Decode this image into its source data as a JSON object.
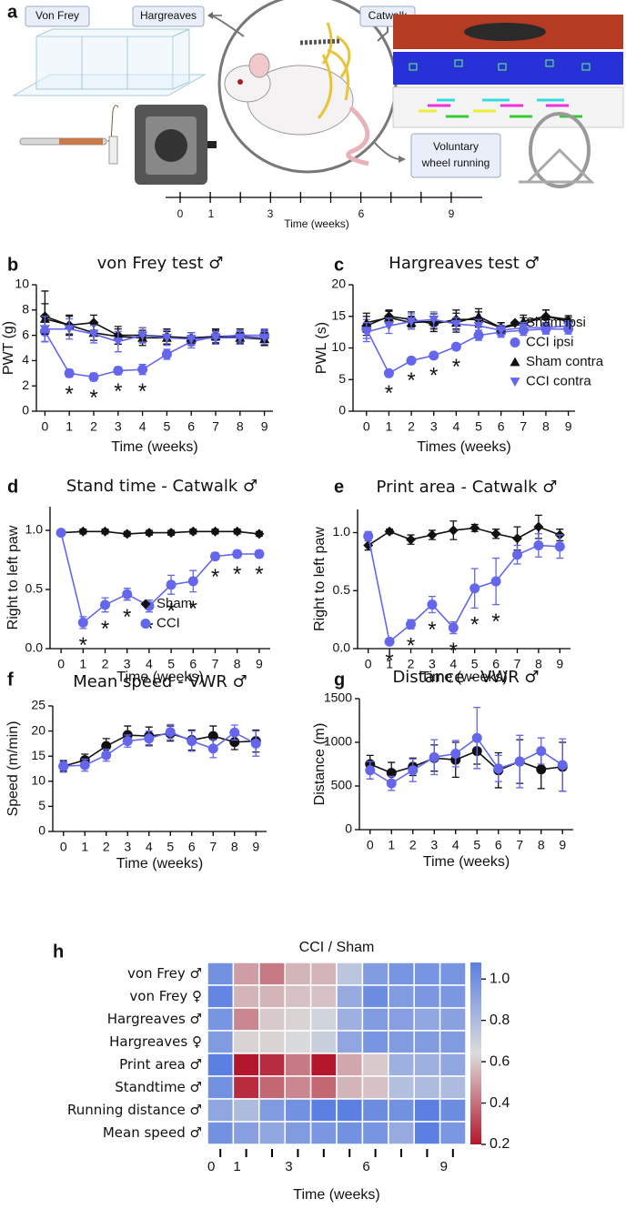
{
  "schematic": {
    "panel_label": "a",
    "von_frey": "Von Frey",
    "hargreaves": "Hargreaves",
    "catwalk": "Catwalk",
    "wheel_box": [
      "Voluntary",
      "wheel running"
    ],
    "timeline_labels": [
      "0",
      "1",
      "3",
      "6",
      "9"
    ],
    "timeline_title": "Time (weeks)"
  },
  "chart_data": [
    {
      "type": "line",
      "panel_label": "b",
      "title": "von Frey test ♂",
      "xlabel": "Time (weeks)",
      "ylabel": "PWT (g)",
      "x": [
        0,
        1,
        2,
        3,
        4,
        5,
        6,
        7,
        8,
        9
      ],
      "xlim": [
        -0.35,
        9.35
      ],
      "xticks": [
        0,
        1,
        2,
        3,
        4,
        5,
        6,
        7,
        8,
        9
      ],
      "ylim": [
        0,
        10
      ],
      "yticks": [
        0,
        2,
        4,
        6,
        8,
        10
      ],
      "legend": false,
      "series": [
        {
          "color": "#111111",
          "marker": "diamond",
          "values": [
            7.5,
            6.8,
            7.0,
            6.0,
            6.0,
            5.9,
            5.8,
            5.9,
            5.9,
            5.8
          ],
          "errors": [
            2.0,
            0.8,
            0.6,
            0.7,
            0.6,
            0.6,
            0.4,
            0.6,
            0.6,
            0.6
          ]
        },
        {
          "color": "#6466ec",
          "marker": "circle",
          "values": [
            6.3,
            3.0,
            2.7,
            3.2,
            3.3,
            4.5,
            5.5,
            5.9,
            6.0,
            6.0
          ],
          "errors": [
            0.8,
            0.3,
            0.3,
            0.3,
            0.4,
            0.4,
            0.5,
            0.5,
            0.4,
            0.5
          ]
        },
        {
          "color": "#111111",
          "marker": "triangle-up",
          "values": [
            7.3,
            6.8,
            6.2,
            5.9,
            5.8,
            5.8,
            5.8,
            5.9,
            5.8,
            5.7
          ],
          "errors": [
            1.2,
            0.7,
            0.6,
            0.6,
            0.6,
            0.5,
            0.4,
            0.5,
            0.4,
            0.5
          ]
        },
        {
          "color": "#6466ec",
          "marker": "triangle-down",
          "values": [
            6.5,
            6.5,
            6.1,
            5.5,
            6.0,
            5.8,
            5.7,
            5.8,
            5.8,
            5.8
          ],
          "errors": [
            1.0,
            0.8,
            0.7,
            0.8,
            0.6,
            0.6,
            0.5,
            0.5,
            0.5,
            0.5
          ]
        }
      ],
      "annotations": [
        {
          "x": 1,
          "text": "*"
        },
        {
          "x": 2,
          "text": "*"
        },
        {
          "x": 3,
          "text": "*"
        },
        {
          "x": 4,
          "text": "*"
        }
      ]
    },
    {
      "type": "line",
      "panel_label": "c",
      "title": "Hargreaves test ♂",
      "xlabel": "Times (weeks)",
      "ylabel": "PWL (s)",
      "x": [
        0,
        1,
        2,
        3,
        4,
        5,
        6,
        7,
        8,
        9
      ],
      "xlim": [
        -0.6,
        9.3
      ],
      "xticks": [
        0,
        1,
        2,
        3,
        4,
        5,
        6,
        7,
        8,
        9
      ],
      "ylim": [
        0,
        20
      ],
      "yticks": [
        0,
        5,
        10,
        15,
        20
      ],
      "legend": "right",
      "series": [
        {
          "name": "Sham ipsi",
          "color": "#111111",
          "marker": "diamond",
          "values": [
            13.5,
            15.0,
            14.5,
            13.8,
            14.5,
            14.5,
            13.2,
            13.8,
            15.0,
            14.2
          ],
          "errors": [
            1.5,
            1.0,
            1.2,
            1.2,
            1.5,
            1.2,
            0.8,
            1.0,
            1.0,
            0.6
          ]
        },
        {
          "name": "CCI ipsi",
          "color": "#6466ec",
          "marker": "circle",
          "values": [
            13.0,
            6.0,
            8.0,
            8.8,
            10.2,
            12.0,
            12.5,
            12.8,
            13.0,
            13.0
          ],
          "errors": [
            1.5,
            0.5,
            0.5,
            0.5,
            0.5,
            0.8,
            0.8,
            0.8,
            0.8,
            0.8
          ]
        },
        {
          "name": "Sham contra",
          "color": "#111111",
          "marker": "triangle-up",
          "values": [
            14.0,
            14.8,
            14.0,
            14.2,
            14.0,
            15.0,
            13.2,
            14.2,
            15.0,
            14.5
          ],
          "errors": [
            1.5,
            1.0,
            1.0,
            1.2,
            1.5,
            1.2,
            0.8,
            1.0,
            1.0,
            0.6
          ]
        },
        {
          "name": "CCI contra",
          "color": "#6466ec",
          "marker": "triangle-down",
          "values": [
            12.5,
            13.5,
            14.2,
            14.5,
            13.8,
            13.5,
            12.8,
            13.2,
            13.2,
            13.5
          ],
          "errors": [
            1.5,
            1.2,
            1.2,
            1.2,
            1.0,
            1.0,
            0.8,
            0.8,
            0.8,
            0.8
          ]
        }
      ],
      "annotations": [
        {
          "x": 1,
          "text": "*"
        },
        {
          "x": 2,
          "text": "*"
        },
        {
          "x": 3,
          "text": "*"
        },
        {
          "x": 4,
          "text": "*"
        }
      ]
    },
    {
      "type": "line",
      "panel_label": "d",
      "title": "Stand time - Catwalk ♂",
      "xlabel": "Time (weeks)",
      "ylabel": "Right to left paw",
      "x": [
        0,
        1,
        2,
        3,
        4,
        5,
        6,
        7,
        8,
        9
      ],
      "xlim": [
        -0.5,
        9.5
      ],
      "xticks": [
        0,
        1,
        2,
        3,
        4,
        5,
        6,
        7,
        8,
        9
      ],
      "ylim": [
        0,
        1.2
      ],
      "yticks": [
        {
          "value": 0,
          "label": "0.0"
        },
        0.5,
        {
          "value": 1,
          "label": "1.0"
        }
      ],
      "legend": "lower right",
      "series": [
        {
          "name": "Sham",
          "color": "#111111",
          "marker": "diamond",
          "values": [
            0.98,
            0.99,
            0.99,
            0.97,
            0.98,
            0.98,
            0.99,
            0.99,
            0.99,
            0.97
          ],
          "errors": [
            0.02,
            0.02,
            0.02,
            0.02,
            0.02,
            0.02,
            0.02,
            0.02,
            0.02,
            0.02
          ]
        },
        {
          "name": "CCI",
          "color": "#6466ec",
          "marker": "circle",
          "values": [
            0.98,
            0.22,
            0.37,
            0.46,
            0.36,
            0.54,
            0.57,
            0.78,
            0.8,
            0.8
          ],
          "errors": [
            0.02,
            0.05,
            0.06,
            0.05,
            0.05,
            0.08,
            0.09,
            0.03,
            0.03,
            0.03
          ]
        }
      ],
      "annotations": [
        {
          "x": 1,
          "text": "*"
        },
        {
          "x": 2,
          "text": "*"
        },
        {
          "x": 3,
          "text": "*"
        },
        {
          "x": 4,
          "text": "*"
        },
        {
          "x": 5,
          "text": "*"
        },
        {
          "x": 6,
          "text": "*"
        },
        {
          "x": 7,
          "text": "*"
        },
        {
          "x": 8,
          "text": "*"
        },
        {
          "x": 9,
          "text": "*"
        }
      ]
    },
    {
      "type": "line",
      "panel_label": "e",
      "title": "Print area - Catwalk ♂",
      "xlabel": "Time (weeks)",
      "ylabel": "Right to left paw",
      "x": [
        0,
        1,
        2,
        3,
        4,
        5,
        6,
        7,
        8,
        9
      ],
      "xlim": [
        -0.5,
        9.5
      ],
      "xticks": [
        0,
        1,
        2,
        3,
        4,
        5,
        6,
        7,
        8,
        9
      ],
      "ylim": [
        0,
        1.2
      ],
      "yticks": [
        {
          "value": 0,
          "label": "0.0"
        },
        0.5,
        {
          "value": 1,
          "label": "1.0"
        }
      ],
      "legend": false,
      "series": [
        {
          "color": "#111111",
          "marker": "diamond",
          "values": [
            0.89,
            1.01,
            0.94,
            0.98,
            1.02,
            1.04,
            0.99,
            0.95,
            1.05,
            0.98
          ],
          "errors": [
            0.04,
            0.02,
            0.04,
            0.04,
            0.08,
            0.03,
            0.04,
            0.1,
            0.1,
            0.05
          ]
        },
        {
          "color": "#6466ec",
          "marker": "circle",
          "values": [
            0.97,
            0.06,
            0.21,
            0.38,
            0.18,
            0.52,
            0.58,
            0.81,
            0.89,
            0.88
          ],
          "errors": [
            0.04,
            0.02,
            0.04,
            0.07,
            0.05,
            0.17,
            0.2,
            0.08,
            0.1,
            0.1
          ]
        }
      ],
      "annotations": [
        {
          "x": 1,
          "text": "*"
        },
        {
          "x": 2,
          "text": "*"
        },
        {
          "x": 3,
          "text": "*"
        },
        {
          "x": 4,
          "text": "*"
        },
        {
          "x": 5,
          "text": "*"
        },
        {
          "x": 6,
          "text": "*"
        }
      ]
    },
    {
      "type": "line",
      "panel_label": "f",
      "title": "Mean speed - VWR ♂",
      "xlabel": "Time (weeks)",
      "ylabel": "Speed (m/min)",
      "x": [
        0,
        1,
        2,
        3,
        4,
        5,
        6,
        7,
        8,
        9
      ],
      "xlim": [
        -0.5,
        9.5
      ],
      "xticks": [
        0,
        1,
        2,
        3,
        4,
        5,
        6,
        7,
        8,
        9
      ],
      "ylim": [
        0,
        25
      ],
      "yticks": [
        0,
        5,
        10,
        15,
        20,
        25
      ],
      "legend": false,
      "series": [
        {
          "color": "#111111",
          "marker": "circle",
          "values": [
            13,
            14.2,
            17,
            19.2,
            19,
            19.5,
            18.2,
            19,
            17.8,
            18
          ],
          "errors": [
            1,
            1.2,
            1.5,
            1.8,
            1.8,
            1.5,
            2,
            2,
            1.5,
            2.2
          ]
        },
        {
          "color": "#6466ec",
          "marker": "circle",
          "values": [
            13,
            13.2,
            15.2,
            18,
            18.5,
            19.8,
            18,
            16.5,
            19.7,
            17.5
          ],
          "errors": [
            1.2,
            1.2,
            1.2,
            1.2,
            1.5,
            1.5,
            2,
            1.8,
            1.5,
            2.5
          ]
        }
      ],
      "annotations": []
    },
    {
      "type": "line",
      "panel_label": "g",
      "title": "Distance - VWR ♂",
      "xlabel": "Time (weeks)",
      "ylabel": "Distance (m)",
      "x": [
        0,
        1,
        2,
        3,
        4,
        5,
        6,
        7,
        8,
        9
      ],
      "xlim": [
        -0.5,
        9.5
      ],
      "xticks": [
        0,
        1,
        2,
        3,
        4,
        5,
        6,
        7,
        8,
        9
      ],
      "ylim": [
        0,
        1500
      ],
      "yticks": [
        0,
        500,
        1000,
        1500
      ],
      "legend": false,
      "series": [
        {
          "color": "#111111",
          "marker": "circle",
          "values": [
            750,
            650,
            720,
            820,
            800,
            900,
            680,
            780,
            690,
            720
          ],
          "errors": [
            100,
            120,
            100,
            150,
            200,
            150,
            200,
            250,
            220,
            280
          ]
        },
        {
          "color": "#6466ec",
          "marker": "circle",
          "values": [
            680,
            530,
            680,
            830,
            870,
            1050,
            700,
            780,
            900,
            740
          ],
          "errors": [
            100,
            80,
            130,
            200,
            150,
            350,
            150,
            300,
            150,
            300
          ]
        }
      ],
      "annotations": []
    },
    {
      "type": "heatmap",
      "panel_label": "h",
      "title": "CCI / Sham",
      "xlabel": "Time (weeks)",
      "categories": [
        "0",
        "1",
        null,
        "3",
        null,
        null,
        "6",
        null,
        null,
        "9"
      ],
      "rows": [
        "von Frey ♂",
        "von Frey ♀",
        "Hargreaves ♂",
        "Hargreaves ♀",
        "Print area ♂",
        "Standtime ♂",
        "Running distance ♂",
        "Mean speed ♂"
      ],
      "values": [
        [
          1.0,
          0.5,
          0.42,
          0.55,
          0.55,
          0.75,
          0.95,
          0.98,
          0.98,
          0.98
        ],
        [
          1.05,
          0.55,
          0.55,
          0.58,
          0.58,
          0.88,
          1.02,
          0.95,
          0.97,
          0.97
        ],
        [
          0.98,
          0.45,
          0.6,
          0.62,
          0.68,
          0.85,
          0.95,
          0.93,
          0.9,
          0.92
        ],
        [
          0.95,
          0.62,
          0.62,
          0.65,
          0.7,
          0.9,
          0.98,
          0.95,
          0.95,
          0.95
        ],
        [
          1.08,
          0.2,
          0.25,
          0.42,
          0.18,
          0.52,
          0.6,
          0.85,
          0.85,
          0.9
        ],
        [
          1.0,
          0.25,
          0.38,
          0.45,
          0.38,
          0.55,
          0.58,
          0.78,
          0.8,
          0.8
        ],
        [
          0.9,
          0.8,
          0.95,
          1.0,
          1.08,
          1.08,
          1.02,
          1.0,
          1.08,
          1.02
        ],
        [
          1.0,
          0.93,
          0.9,
          0.95,
          0.97,
          1.0,
          0.98,
          0.88,
          1.08,
          0.97
        ]
      ],
      "vlim": [
        0.2,
        1.08
      ],
      "colors": [
        "#b2172b",
        "#dcdcdc",
        "#5b80e2"
      ],
      "cticks": [
        0.2,
        0.4,
        0.6,
        0.8,
        {
          "value": 1,
          "label": "1.0"
        }
      ]
    }
  ]
}
